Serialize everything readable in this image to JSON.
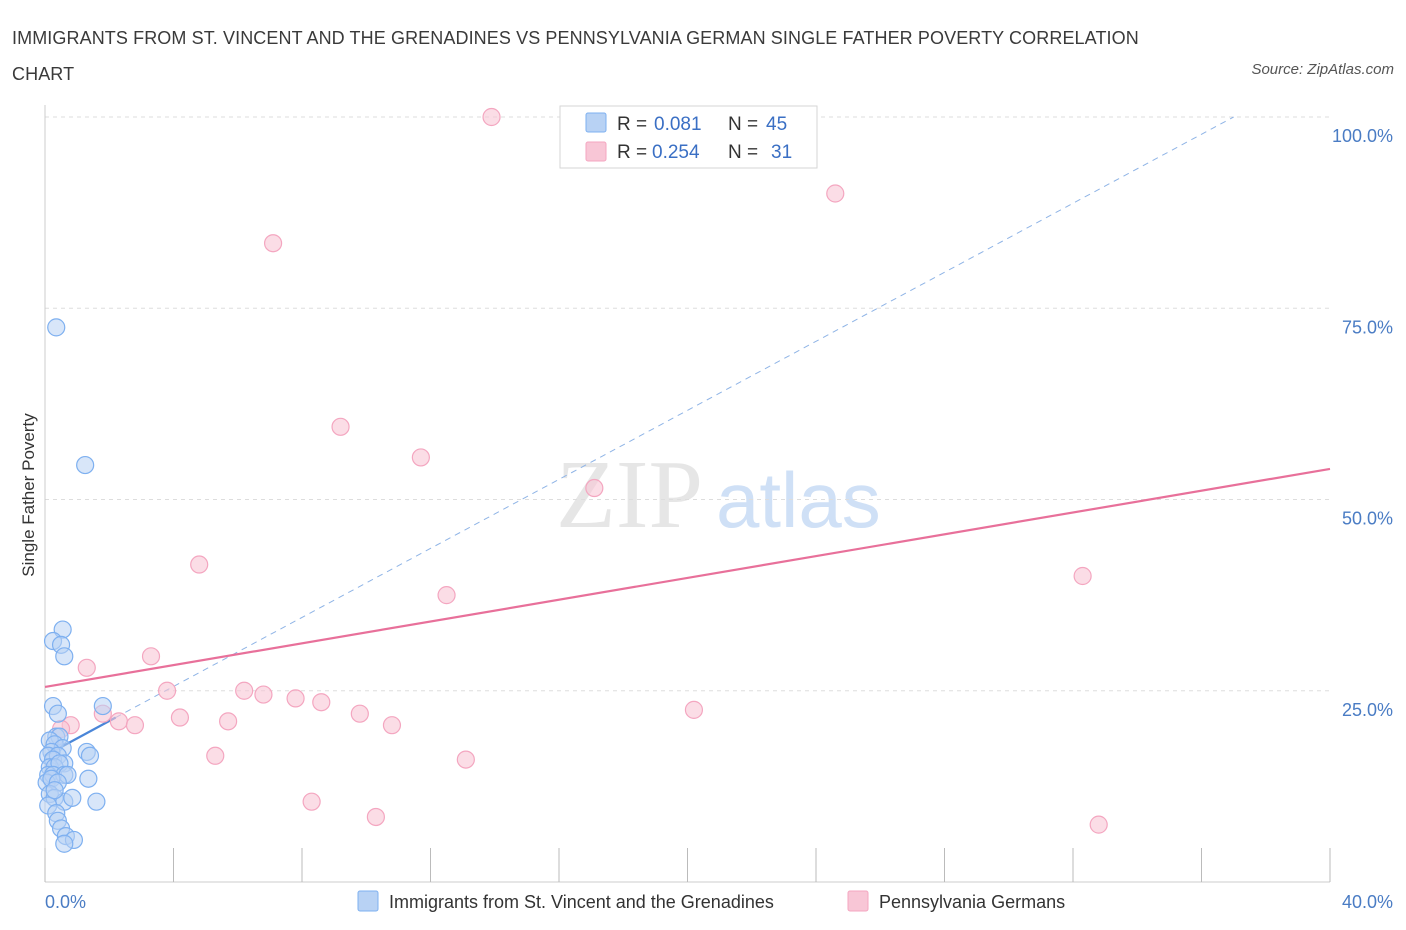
{
  "title": "IMMIGRANTS FROM ST. VINCENT AND THE GRENADINES VS PENNSYLVANIA GERMAN SINGLE FATHER POVERTY CORRELATION CHART",
  "source": "Source: ZipAtlas.com",
  "watermark": {
    "zip": "ZIP",
    "atlas": "atlas"
  },
  "legend": {
    "r_label": "R =",
    "n_label": "N =",
    "rows": [
      {
        "r": "0.081",
        "n": "45",
        "color": "#7eb0f0"
      },
      {
        "r": "0.254",
        "n": "31",
        "color": "#f4a6c0"
      }
    ]
  },
  "bottom_legend": [
    {
      "label": "Immigrants from St. Vincent and the Grenadines",
      "color": "#7eb0f0"
    },
    {
      "label": "Pennsylvania Germans",
      "color": "#f4a6c0"
    }
  ],
  "colors": {
    "blue": "#4a86d8",
    "blue_fill": "#b8d2f4",
    "pink": "#e8709a",
    "pink_fill": "#f8c6d6",
    "axis_text": "#4a7cc4",
    "grid": "#dddddd"
  },
  "chart_data": {
    "type": "scatter",
    "title": "IMMIGRANTS FROM ST. VINCENT AND THE GRENADINES VS PENNSYLVANIA GERMAN SINGLE FATHER POVERTY CORRELATION CHART",
    "xlabel": "",
    "ylabel": "Single Father Poverty",
    "xlim": [
      0,
      40
    ],
    "ylim": [
      0,
      100
    ],
    "x_tick_labels": [
      "0.0%",
      "40.0%"
    ],
    "y_ticks": [
      25,
      50,
      75,
      100
    ],
    "y_tick_labels": [
      "25.0%",
      "50.0%",
      "75.0%",
      "100.0%"
    ],
    "grid": true,
    "legend_position": "top-center",
    "series": [
      {
        "name": "Immigrants from St. Vincent and the Grenadines",
        "color": "#7eb0f0",
        "R": 0.081,
        "N": 45,
        "points": [
          [
            0.35,
            72.5
          ],
          [
            1.25,
            54.5
          ],
          [
            0.55,
            33
          ],
          [
            0.25,
            31.5
          ],
          [
            0.5,
            31
          ],
          [
            0.6,
            29.5
          ],
          [
            1.8,
            23
          ],
          [
            0.25,
            23
          ],
          [
            0.4,
            22
          ],
          [
            0.35,
            19
          ],
          [
            0.45,
            19
          ],
          [
            0.15,
            18.5
          ],
          [
            0.3,
            18
          ],
          [
            0.55,
            17.5
          ],
          [
            0.2,
            17
          ],
          [
            0.1,
            16.5
          ],
          [
            0.4,
            16.5
          ],
          [
            1.3,
            17
          ],
          [
            1.4,
            16.5
          ],
          [
            0.25,
            16
          ],
          [
            0.6,
            15.5
          ],
          [
            0.15,
            15
          ],
          [
            0.3,
            15
          ],
          [
            0.45,
            15.5
          ],
          [
            0.1,
            14
          ],
          [
            0.25,
            14
          ],
          [
            0.6,
            14
          ],
          [
            0.7,
            14
          ],
          [
            1.35,
            13.5
          ],
          [
            0.05,
            13
          ],
          [
            0.2,
            13.5
          ],
          [
            0.4,
            13
          ],
          [
            0.15,
            11.5
          ],
          [
            0.3,
            11
          ],
          [
            0.6,
            10.5
          ],
          [
            0.85,
            11
          ],
          [
            1.6,
            10.5
          ],
          [
            0.1,
            10
          ],
          [
            0.35,
            9
          ],
          [
            0.4,
            8
          ],
          [
            0.5,
            7
          ],
          [
            0.65,
            6
          ],
          [
            0.9,
            5.5
          ],
          [
            0.6,
            5
          ],
          [
            0.3,
            12
          ]
        ],
        "trend": {
          "x": [
            0,
            2.2
          ],
          "y": [
            16.5,
            21.5
          ]
        },
        "trend_extension": {
          "x": [
            2.2,
            37
          ],
          "y": [
            21.5,
            100
          ]
        }
      },
      {
        "name": "Pennsylvania Germans",
        "color": "#f4a6c0",
        "R": 0.254,
        "N": 31,
        "points": [
          [
            13.9,
            100
          ],
          [
            24.6,
            90
          ],
          [
            7.1,
            83.5
          ],
          [
            9.2,
            59.5
          ],
          [
            11.7,
            55.5
          ],
          [
            17.1,
            51.5
          ],
          [
            4.8,
            41.5
          ],
          [
            12.5,
            37.5
          ],
          [
            32.3,
            40
          ],
          [
            1.3,
            28
          ],
          [
            3.3,
            29.5
          ],
          [
            3.8,
            25
          ],
          [
            6.2,
            25
          ],
          [
            6.8,
            24.5
          ],
          [
            7.8,
            24
          ],
          [
            8.6,
            23.5
          ],
          [
            1.8,
            22
          ],
          [
            4.2,
            21.5
          ],
          [
            9.8,
            22
          ],
          [
            5.7,
            21
          ],
          [
            2.3,
            21
          ],
          [
            0.8,
            20.5
          ],
          [
            2.8,
            20.5
          ],
          [
            10.8,
            20.5
          ],
          [
            20.2,
            22.5
          ],
          [
            5.3,
            16.5
          ],
          [
            13.1,
            16
          ],
          [
            8.3,
            10.5
          ],
          [
            10.3,
            8.5
          ],
          [
            32.8,
            7.5
          ],
          [
            0.5,
            20
          ]
        ],
        "trend": {
          "x": [
            0,
            40
          ],
          "y": [
            25.5,
            54
          ]
        }
      }
    ]
  }
}
